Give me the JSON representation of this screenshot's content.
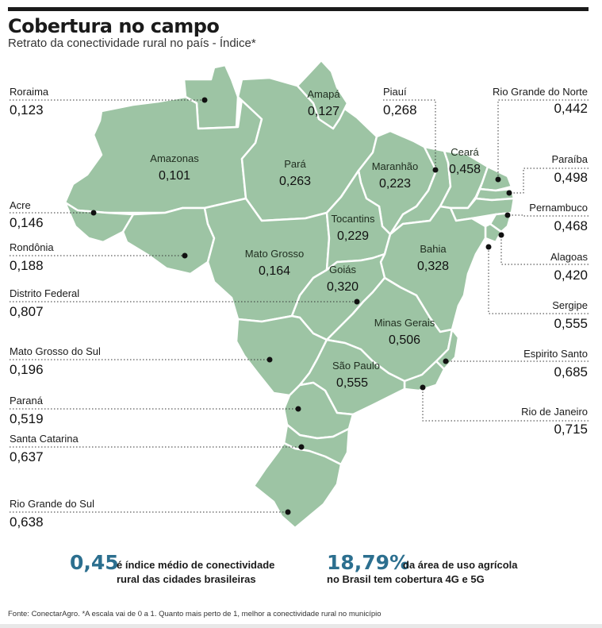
{
  "header": {
    "title": "Cobertura no campo",
    "subtitle": "Retrato da conectividade rural no país - Índice*"
  },
  "colors": {
    "land": "#9dc4a4",
    "border": "#ffffff",
    "highlight": "#2c6f8f",
    "dot": "#111111"
  },
  "states": [
    {
      "id": "amazonas",
      "name": "Amazonas",
      "value": "0,101"
    },
    {
      "id": "para",
      "name": "Pará",
      "value": "0,263"
    },
    {
      "id": "amapa",
      "name": "Amapá",
      "value": "0,127"
    },
    {
      "id": "maranhao",
      "name": "Maranhão",
      "value": "0,223"
    },
    {
      "id": "ceara",
      "name": "Ceará",
      "value": "0,458"
    },
    {
      "id": "tocantins",
      "name": "Tocantins",
      "value": "0,229"
    },
    {
      "id": "mato_grosso",
      "name": "Mato Grosso",
      "value": "0,164"
    },
    {
      "id": "goias",
      "name": "Goiás",
      "value": "0,320"
    },
    {
      "id": "bahia",
      "name": "Bahia",
      "value": "0,328"
    },
    {
      "id": "minas_gerais",
      "name": "Minas Gerais",
      "value": "0,506"
    },
    {
      "id": "sao_paulo",
      "name": "São Paulo",
      "value": "0,555"
    }
  ],
  "callouts_left": [
    {
      "id": "roraima",
      "name": "Roraima",
      "value": "0,123"
    },
    {
      "id": "acre",
      "name": "Acre",
      "value": "0,146"
    },
    {
      "id": "rondonia",
      "name": "Rondônia",
      "value": "0,188"
    },
    {
      "id": "distrito_federal",
      "name": "Distrito Federal",
      "value": "0,807"
    },
    {
      "id": "mato_grosso_do_sul",
      "name": "Mato Grosso do Sul",
      "value": "0,196"
    },
    {
      "id": "parana",
      "name": "Paraná",
      "value": "0,519"
    },
    {
      "id": "santa_catarina",
      "name": "Santa Catarina",
      "value": "0,637"
    },
    {
      "id": "rio_grande_do_sul",
      "name": "Rio Grande do Sul",
      "value": "0,638"
    }
  ],
  "callouts_right": [
    {
      "id": "piaui",
      "name": "Piauí",
      "value": "0,268"
    },
    {
      "id": "rio_grande_do_norte",
      "name": "Rio Grande do Norte",
      "value": "0,442"
    },
    {
      "id": "paraiba",
      "name": "Paraíba",
      "value": "0,498"
    },
    {
      "id": "pernambuco",
      "name": "Pernambuco",
      "value": "0,468"
    },
    {
      "id": "alagoas",
      "name": "Alagoas",
      "value": "0,420"
    },
    {
      "id": "sergipe",
      "name": "Sergipe",
      "value": "0,555"
    },
    {
      "id": "espirito_santo",
      "name": "Espirito Santo",
      "value": "0,685"
    },
    {
      "id": "rio_de_janeiro",
      "name": "Rio de Janeiro",
      "value": "0,715"
    }
  ],
  "stats": [
    {
      "value": "0,45",
      "line1": "é índice médio de conectividade",
      "line2": "rural das cidades brasileiras"
    },
    {
      "value": "18,79%",
      "line1": "da área de uso agrícola",
      "line2": "no Brasil tem cobertura 4G e 5G"
    }
  ],
  "footnote": "Fonte: ConectarAgro. *A escala vai de 0 a 1. Quanto mais perto de 1, melhor a conectividade rural no município"
}
